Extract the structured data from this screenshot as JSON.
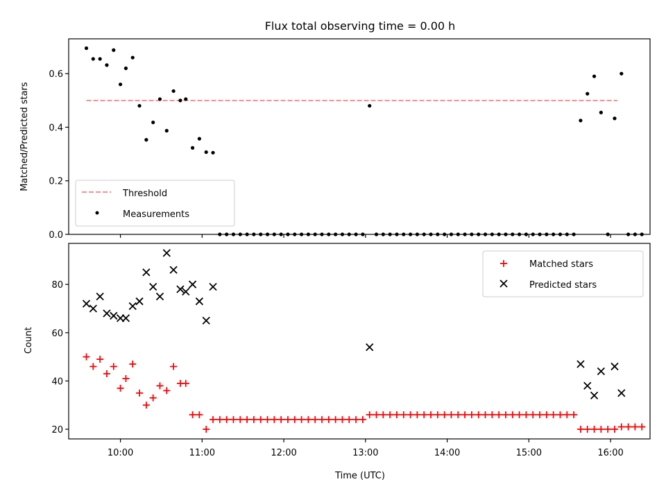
{
  "chart_data": [
    {
      "type": "scatter",
      "title": "Flux total observing time = 0.00 h",
      "xlabel": "",
      "ylabel": "Matched/Predicted stars",
      "xlim": [
        "09:22",
        "16:29"
      ],
      "ylim": [
        0,
        0.73
      ],
      "yticks": [
        0.0,
        0.2,
        0.4,
        0.6
      ],
      "ytick_labels": [
        "0.0",
        "0.2",
        "0.4",
        "0.6"
      ],
      "xticks": [
        "10:00",
        "11:00",
        "12:00",
        "13:00",
        "14:00",
        "15:00",
        "16:00"
      ],
      "legend_position": "lower-left",
      "threshold": {
        "name": "Threshold",
        "value": 0.5,
        "x_range": [
          "09:35",
          "16:05"
        ],
        "color": "#ff7f7f",
        "style": "dashed"
      },
      "series": [
        {
          "name": "Measurements",
          "color": "#000000",
          "marker": "dot",
          "points": [
            [
              "09:35",
              0.695
            ],
            [
              "09:40",
              0.655
            ],
            [
              "09:45",
              0.655
            ],
            [
              "09:50",
              0.632
            ],
            [
              "09:55",
              0.688
            ],
            [
              "10:00",
              0.56
            ],
            [
              "10:04",
              0.62
            ],
            [
              "10:09",
              0.66
            ],
            [
              "10:14",
              0.48
            ],
            [
              "10:19",
              0.353
            ],
            [
              "10:24",
              0.418
            ],
            [
              "10:29",
              0.505
            ],
            [
              "10:34",
              0.387
            ],
            [
              "10:39",
              0.535
            ],
            [
              "10:44",
              0.5
            ],
            [
              "10:48",
              0.505
            ],
            [
              "10:53",
              0.323
            ],
            [
              "10:58",
              0.357
            ],
            [
              "11:03",
              0.307
            ],
            [
              "11:08",
              0.305
            ],
            [
              "11:13",
              0.0
            ],
            [
              "11:18",
              0.0
            ],
            [
              "11:23",
              0.0
            ],
            [
              "11:28",
              0.0
            ],
            [
              "11:33",
              0.0
            ],
            [
              "11:38",
              0.0
            ],
            [
              "11:43",
              0.0
            ],
            [
              "11:48",
              0.0
            ],
            [
              "11:53",
              0.0
            ],
            [
              "11:58",
              0.0
            ],
            [
              "12:03",
              0.0
            ],
            [
              "12:08",
              0.0
            ],
            [
              "12:13",
              0.0
            ],
            [
              "12:18",
              0.0
            ],
            [
              "12:23",
              0.0
            ],
            [
              "12:28",
              0.0
            ],
            [
              "12:33",
              0.0
            ],
            [
              "12:38",
              0.0
            ],
            [
              "12:43",
              0.0
            ],
            [
              "12:48",
              0.0
            ],
            [
              "12:53",
              0.0
            ],
            [
              "12:58",
              0.0
            ],
            [
              "13:03",
              0.48
            ],
            [
              "13:08",
              0.0
            ],
            [
              "13:13",
              0.0
            ],
            [
              "13:18",
              0.0
            ],
            [
              "13:23",
              0.0
            ],
            [
              "13:28",
              0.0
            ],
            [
              "13:33",
              0.0
            ],
            [
              "13:38",
              0.0
            ],
            [
              "13:43",
              0.0
            ],
            [
              "13:48",
              0.0
            ],
            [
              "13:53",
              0.0
            ],
            [
              "13:58",
              0.0
            ],
            [
              "14:03",
              0.0
            ],
            [
              "14:08",
              0.0
            ],
            [
              "14:13",
              0.0
            ],
            [
              "14:18",
              0.0
            ],
            [
              "14:23",
              0.0
            ],
            [
              "14:28",
              0.0
            ],
            [
              "14:33",
              0.0
            ],
            [
              "14:38",
              0.0
            ],
            [
              "14:43",
              0.0
            ],
            [
              "14:48",
              0.0
            ],
            [
              "14:53",
              0.0
            ],
            [
              "14:58",
              0.0
            ],
            [
              "15:03",
              0.0
            ],
            [
              "15:08",
              0.0
            ],
            [
              "15:13",
              0.0
            ],
            [
              "15:18",
              0.0
            ],
            [
              "15:23",
              0.0
            ],
            [
              "15:28",
              0.0
            ],
            [
              "15:33",
              0.0
            ],
            [
              "15:38",
              0.425
            ],
            [
              "15:43",
              0.525
            ],
            [
              "15:48",
              0.59
            ],
            [
              "15:53",
              0.455
            ],
            [
              "15:58",
              0.0
            ],
            [
              "16:03",
              0.433
            ],
            [
              "16:08",
              0.6
            ],
            [
              "16:13",
              0.0
            ],
            [
              "16:18",
              0.0
            ],
            [
              "16:23",
              0.0
            ]
          ]
        }
      ]
    },
    {
      "type": "scatter",
      "title": "",
      "xlabel": "Time (UTC)",
      "ylabel": "Count",
      "xlim": [
        "09:22",
        "16:29"
      ],
      "ylim": [
        16,
        97
      ],
      "yticks": [
        20,
        40,
        60,
        80
      ],
      "ytick_labels": [
        "20",
        "40",
        "60",
        "80"
      ],
      "xticks": [
        "10:00",
        "11:00",
        "12:00",
        "13:00",
        "14:00",
        "15:00",
        "16:00"
      ],
      "legend_position": "upper-right",
      "series": [
        {
          "name": "Matched stars",
          "color": "#ff0000",
          "marker": "plus",
          "points": [
            [
              "09:35",
              50
            ],
            [
              "09:40",
              46
            ],
            [
              "09:45",
              49
            ],
            [
              "09:50",
              43
            ],
            [
              "09:55",
              46
            ],
            [
              "10:00",
              37
            ],
            [
              "10:04",
              41
            ],
            [
              "10:09",
              47
            ],
            [
              "10:14",
              35
            ],
            [
              "10:19",
              30
            ],
            [
              "10:24",
              33
            ],
            [
              "10:29",
              38
            ],
            [
              "10:34",
              36
            ],
            [
              "10:39",
              46
            ],
            [
              "10:44",
              39
            ],
            [
              "10:48",
              39
            ],
            [
              "10:53",
              26
            ],
            [
              "10:58",
              26
            ],
            [
              "11:03",
              20
            ],
            [
              "11:08",
              24
            ],
            [
              "11:13",
              24
            ],
            [
              "11:18",
              24
            ],
            [
              "11:23",
              24
            ],
            [
              "11:28",
              24
            ],
            [
              "11:33",
              24
            ],
            [
              "11:38",
              24
            ],
            [
              "11:43",
              24
            ],
            [
              "11:48",
              24
            ],
            [
              "11:53",
              24
            ],
            [
              "11:58",
              24
            ],
            [
              "12:03",
              24
            ],
            [
              "12:08",
              24
            ],
            [
              "12:13",
              24
            ],
            [
              "12:18",
              24
            ],
            [
              "12:23",
              24
            ],
            [
              "12:28",
              24
            ],
            [
              "12:33",
              24
            ],
            [
              "12:38",
              24
            ],
            [
              "12:43",
              24
            ],
            [
              "12:48",
              24
            ],
            [
              "12:53",
              24
            ],
            [
              "12:58",
              24
            ],
            [
              "13:03",
              26
            ],
            [
              "13:08",
              26
            ],
            [
              "13:13",
              26
            ],
            [
              "13:18",
              26
            ],
            [
              "13:23",
              26
            ],
            [
              "13:28",
              26
            ],
            [
              "13:33",
              26
            ],
            [
              "13:38",
              26
            ],
            [
              "13:43",
              26
            ],
            [
              "13:48",
              26
            ],
            [
              "13:53",
              26
            ],
            [
              "13:58",
              26
            ],
            [
              "14:03",
              26
            ],
            [
              "14:08",
              26
            ],
            [
              "14:13",
              26
            ],
            [
              "14:18",
              26
            ],
            [
              "14:23",
              26
            ],
            [
              "14:28",
              26
            ],
            [
              "14:33",
              26
            ],
            [
              "14:38",
              26
            ],
            [
              "14:43",
              26
            ],
            [
              "14:48",
              26
            ],
            [
              "14:53",
              26
            ],
            [
              "14:58",
              26
            ],
            [
              "15:03",
              26
            ],
            [
              "15:08",
              26
            ],
            [
              "15:13",
              26
            ],
            [
              "15:18",
              26
            ],
            [
              "15:23",
              26
            ],
            [
              "15:28",
              26
            ],
            [
              "15:33",
              26
            ],
            [
              "15:38",
              20
            ],
            [
              "15:43",
              20
            ],
            [
              "15:48",
              20
            ],
            [
              "15:53",
              20
            ],
            [
              "15:58",
              20
            ],
            [
              "16:03",
              20
            ],
            [
              "16:08",
              21
            ],
            [
              "16:13",
              21
            ],
            [
              "16:18",
              21
            ],
            [
              "16:23",
              21
            ]
          ]
        },
        {
          "name": "Predicted stars",
          "color": "#000000",
          "marker": "x",
          "points": [
            [
              "09:35",
              72
            ],
            [
              "09:40",
              70
            ],
            [
              "09:45",
              75
            ],
            [
              "09:50",
              68
            ],
            [
              "09:55",
              67
            ],
            [
              "10:00",
              66
            ],
            [
              "10:04",
              66
            ],
            [
              "10:09",
              71
            ],
            [
              "10:14",
              73
            ],
            [
              "10:19",
              85
            ],
            [
              "10:24",
              79
            ],
            [
              "10:29",
              75
            ],
            [
              "10:34",
              93
            ],
            [
              "10:39",
              86
            ],
            [
              "10:44",
              78
            ],
            [
              "10:48",
              77
            ],
            [
              "10:53",
              80
            ],
            [
              "10:58",
              73
            ],
            [
              "11:03",
              65
            ],
            [
              "11:08",
              79
            ],
            [
              "13:03",
              54
            ],
            [
              "15:38",
              47
            ],
            [
              "15:43",
              38
            ],
            [
              "15:48",
              34
            ],
            [
              "15:53",
              44
            ],
            [
              "16:03",
              46
            ],
            [
              "16:08",
              35
            ]
          ]
        }
      ]
    }
  ]
}
